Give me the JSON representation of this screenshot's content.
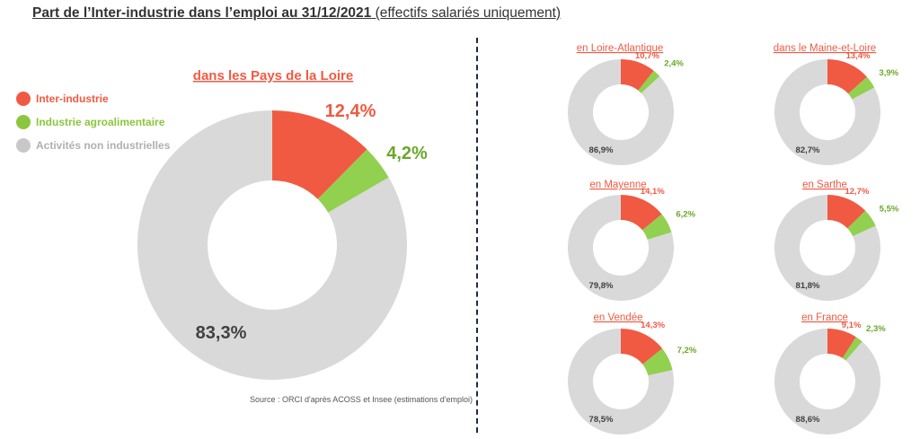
{
  "title": {
    "bold": "Part de l’Inter-industrie dans l’emploi au 31/12/2021",
    "normal": " (effectifs salariés uniquement)"
  },
  "legend": [
    {
      "label": "Inter-industrie",
      "color": "#f05a42"
    },
    {
      "label": "Industrie agroalimentaire",
      "color": "#8cc63e"
    },
    {
      "label": "Activités non industrielles",
      "color": "#c8c8c8"
    }
  ],
  "colors": {
    "inter": "#f05a42",
    "agro": "#92d050",
    "other": "#d9d9d9"
  },
  "source": "Source : ORCI d'après ACOSS et Insee (estimations d'emploi)",
  "chart_data": [
    {
      "type": "pie",
      "title": "dans les Pays de la Loire",
      "categories": [
        "Inter-industrie",
        "Industrie agroalimentaire",
        "Activités non industrielles"
      ],
      "values": [
        12.4,
        4.2,
        83.3
      ],
      "labels": [
        "12,4%",
        "4,2%",
        "83,3%"
      ]
    },
    {
      "type": "pie",
      "title": "en Loire-Atlantique",
      "categories": [
        "Inter-industrie",
        "Industrie agroalimentaire",
        "Activités non industrielles"
      ],
      "values": [
        10.7,
        2.4,
        86.9
      ],
      "labels": [
        "10,7%",
        "2,4%",
        "86,9%"
      ]
    },
    {
      "type": "pie",
      "title": "dans le Maine-et-Loire",
      "categories": [
        "Inter-industrie",
        "Industrie agroalimentaire",
        "Activités non industrielles"
      ],
      "values": [
        13.4,
        3.9,
        82.7
      ],
      "labels": [
        "13,4%",
        "3,9%",
        "82,7%"
      ]
    },
    {
      "type": "pie",
      "title": "en Mayenne",
      "categories": [
        "Inter-industrie",
        "Industrie agroalimentaire",
        "Activités non industrielles"
      ],
      "values": [
        14.1,
        6.2,
        79.8
      ],
      "labels": [
        "14,1%",
        "6,2%",
        "79,8%"
      ]
    },
    {
      "type": "pie",
      "title": "en Sarthe",
      "categories": [
        "Inter-industrie",
        "Industrie agroalimentaire",
        "Activités non industrielles"
      ],
      "values": [
        12.7,
        5.5,
        81.8
      ],
      "labels": [
        "12,7%",
        "5,5%",
        "81,8%"
      ]
    },
    {
      "type": "pie",
      "title": "en Vendée",
      "categories": [
        "Inter-industrie",
        "Industrie agroalimentaire",
        "Activités non industrielles"
      ],
      "values": [
        14.3,
        7.2,
        78.5
      ],
      "labels": [
        "14,3%",
        "7,2%",
        "78,5%"
      ]
    },
    {
      "type": "pie",
      "title": "en France",
      "categories": [
        "Inter-industrie",
        "Industrie agroalimentaire",
        "Activités non industrielles"
      ],
      "values": [
        9.1,
        2.3,
        88.6
      ],
      "labels": [
        "9,1%",
        "2,3%",
        "88,6%"
      ]
    }
  ]
}
